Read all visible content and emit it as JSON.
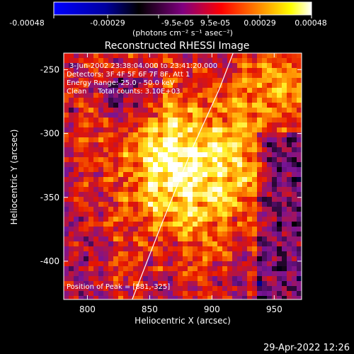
{
  "colorbar": {
    "ticks": [
      "-0.00048",
      "-0.00029",
      "-9.5e-05",
      "9.5e-05",
      "0.00029",
      "0.00048"
    ],
    "unit_label": "(photons cm⁻² s⁻¹ asec⁻²)",
    "colors": [
      "#0000ff",
      "#000000",
      "#800080",
      "#ff0000",
      "#ff8c00",
      "#ffff00",
      "#ffffff"
    ]
  },
  "chart_data": {
    "type": "heatmap",
    "title": "Reconstructed RHESSI Image",
    "xlabel": "Heliocentric X (arcsec)",
    "ylabel": "Heliocentric Y (arcsec)",
    "xlim": [
      781,
      972
    ],
    "ylim": [
      -430,
      -237
    ],
    "x_ticks": [
      800,
      850,
      900,
      950
    ],
    "y_ticks": [
      -250,
      -300,
      -350,
      -400
    ],
    "annotations": [
      "3-Jun-2002 23:38:04.000 to 23:41:20.000",
      "Detectors: 3F 4F 5F 6F 7F 8F, Att 1",
      "Energy Range: 25.0 - 50.0 keV",
      "Clean     Total counts: 3.10E+03"
    ],
    "peak_label": "Position of Peak = [881,-325]",
    "peak": [
      881,
      -325
    ],
    "limb_curve": [
      [
        836,
        -430
      ],
      [
        860,
        -370
      ],
      [
        885,
        -310
      ],
      [
        906,
        -265
      ],
      [
        917,
        -237
      ]
    ]
  },
  "footer": {
    "timestamp": "29-Apr-2022 12:26"
  }
}
